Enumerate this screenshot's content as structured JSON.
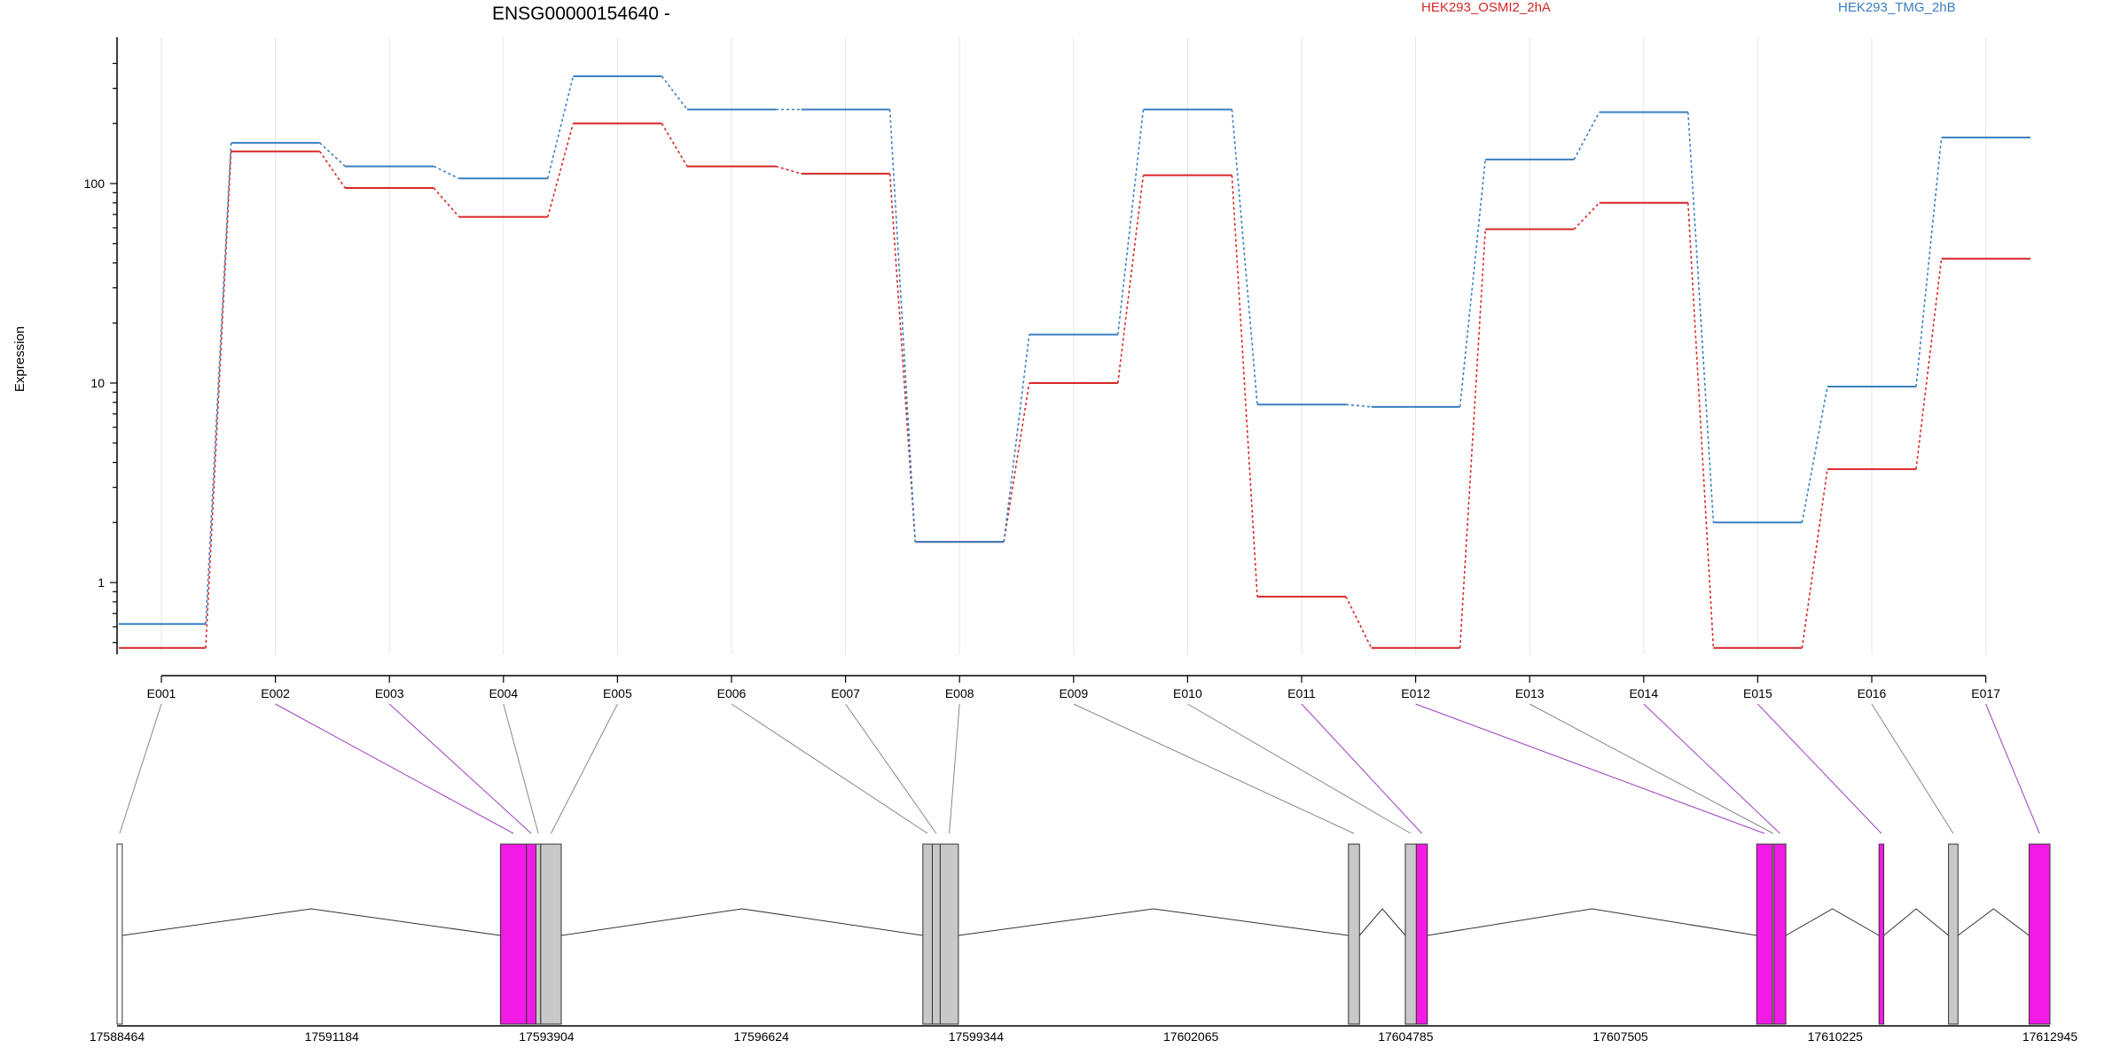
{
  "chart_data": {
    "type": "line",
    "title": "ENSG00000154640 -",
    "ylabel": "Expression",
    "y_scale": "log",
    "y_tick_labels": [
      "1",
      "10",
      "100"
    ],
    "y_ticks": [
      1,
      10,
      100
    ],
    "ylim": [
      0.45,
      420
    ],
    "grid": "vertical",
    "legend_placement": "top",
    "categories": [
      "E001",
      "E002",
      "E003",
      "E004",
      "E005",
      "E006",
      "E007",
      "E008",
      "E009",
      "E010",
      "E011",
      "E012",
      "E013",
      "E014",
      "E015",
      "E016",
      "E017"
    ],
    "series": [
      {
        "name": "HEK293_OSMI2_2hA",
        "color": "#d62728",
        "values": [
          0.47,
          145,
          95,
          68,
          200,
          122,
          112,
          1.6,
          10,
          110,
          0.85,
          0.47,
          59,
          80,
          0.47,
          3.7,
          42
        ]
      },
      {
        "name": "HEK293_TMG_2hB",
        "color": "#3a7ebf",
        "values": [
          0.62,
          160,
          122,
          106,
          345,
          235,
          235,
          1.6,
          17.5,
          235,
          7.8,
          7.6,
          132,
          228,
          2.0,
          9.6,
          170
        ]
      }
    ],
    "gene_model": {
      "coordinate_labels": [
        "17588464",
        "17591184",
        "17593904",
        "17596624",
        "17599344",
        "17602065",
        "17604785",
        "17607505",
        "17610225",
        "17612945"
      ],
      "coordinate_values": [
        17588464,
        17591184,
        17593904,
        17596624,
        17599344,
        17602065,
        17604785,
        17607505,
        17610225,
        17612945
      ],
      "exons": [
        {
          "id": "E001",
          "start": 17588464,
          "end": 17588530,
          "significant": false
        },
        {
          "id": "E002",
          "start": 17593320,
          "end": 17593650,
          "significant": true
        },
        {
          "id": "E003",
          "start": 17593650,
          "end": 17593770,
          "significant": true
        },
        {
          "id": "E004",
          "start": 17593770,
          "end": 17593830,
          "significant": false
        },
        {
          "id": "E005",
          "start": 17593830,
          "end": 17594090,
          "significant": false
        },
        {
          "id": "E006",
          "start": 17598670,
          "end": 17598790,
          "significant": false
        },
        {
          "id": "E007",
          "start": 17598790,
          "end": 17598890,
          "significant": false
        },
        {
          "id": "E008",
          "start": 17598890,
          "end": 17599120,
          "significant": false
        },
        {
          "id": "E009",
          "start": 17604060,
          "end": 17604200,
          "significant": false
        },
        {
          "id": "E010",
          "start": 17604780,
          "end": 17604920,
          "significant": false
        },
        {
          "id": "E011",
          "start": 17604920,
          "end": 17605060,
          "significant": true
        },
        {
          "id": "E012",
          "start": 17609230,
          "end": 17609430,
          "significant": true
        },
        {
          "id": "E013",
          "start": 17609430,
          "end": 17609450,
          "significant": false
        },
        {
          "id": "E014",
          "start": 17609450,
          "end": 17609600,
          "significant": true
        },
        {
          "id": "E015",
          "start": 17610780,
          "end": 17610840,
          "significant": true
        },
        {
          "id": "E016",
          "start": 17611660,
          "end": 17611780,
          "significant": false
        },
        {
          "id": "E017",
          "start": 17612680,
          "end": 17612945,
          "significant": true
        }
      ]
    }
  }
}
